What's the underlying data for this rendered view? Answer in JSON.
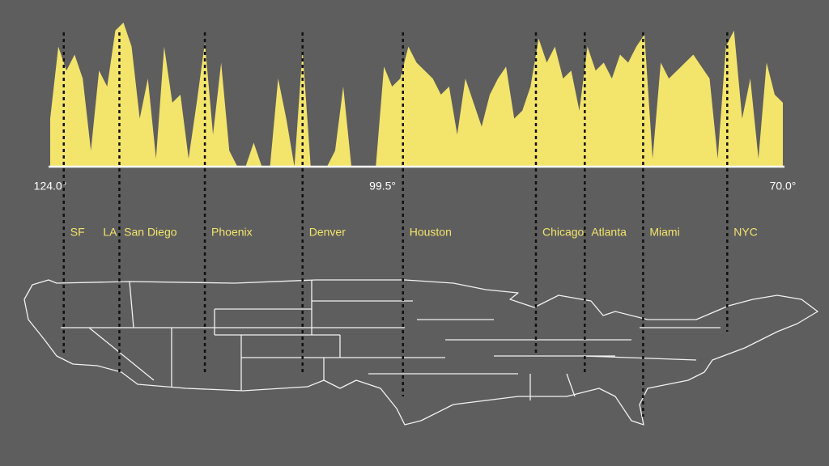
{
  "chart_data": {
    "type": "area",
    "color": "#f3e46c",
    "x": [
      124,
      123.4,
      122.8,
      122.2,
      121.6,
      121,
      120.4,
      119.8,
      119.2,
      118.6,
      118,
      117.4,
      116.8,
      116.2,
      115.6,
      115,
      114.4,
      113.8,
      113.2,
      112.6,
      112,
      111.4,
      110.8,
      110.2,
      109.6,
      109,
      108.4,
      107.8,
      107.2,
      106.6,
      106,
      105.4,
      104.8,
      104.2,
      103.6,
      103,
      102.4,
      101.8,
      101.2,
      100.6,
      100,
      99.4,
      98.8,
      98.2,
      97.6,
      97,
      96.4,
      95.8,
      95.2,
      94.6,
      94,
      93.4,
      92.8,
      92.2,
      91.6,
      91,
      90.4,
      89.8,
      89.2,
      88.6,
      88,
      87.4,
      86.8,
      86.2,
      85.6,
      85,
      84.4,
      83.8,
      83.2,
      82.6,
      82,
      81.4,
      80.8,
      80.2,
      79.6,
      79,
      78.4,
      77.8,
      77.2,
      76.6,
      76,
      75.4,
      74.8,
      74.2,
      73.6,
      73,
      72.4,
      71.8,
      71.2,
      70.6,
      70
    ],
    "values": [
      60,
      150,
      120,
      140,
      110,
      20,
      120,
      100,
      170,
      180,
      150,
      60,
      110,
      10,
      150,
      80,
      90,
      10,
      80,
      155,
      40,
      130,
      20,
      0,
      0,
      30,
      0,
      0,
      110,
      60,
      0,
      145,
      0,
      0,
      0,
      20,
      100,
      0,
      0,
      0,
      0,
      125,
      100,
      110,
      150,
      130,
      120,
      110,
      90,
      100,
      40,
      110,
      80,
      50,
      90,
      110,
      125,
      60,
      70,
      100,
      160,
      130,
      150,
      110,
      120,
      70,
      150,
      120,
      130,
      110,
      140,
      130,
      150,
      165,
      10,
      130,
      110,
      120,
      130,
      140,
      125,
      110,
      10,
      150,
      170,
      60,
      110,
      10,
      130,
      90,
      80
    ],
    "xlim": [
      124,
      70
    ],
    "ylim": [
      0,
      190
    ],
    "xticks": [
      {
        "value": 124,
        "label": "124.0°"
      },
      {
        "value": 99.5,
        "label": "99.5°"
      },
      {
        "value": 70,
        "label": "70.0°"
      }
    ],
    "cities": [
      {
        "name": "SF",
        "lon": 123.0
      },
      {
        "name": "LA",
        "lon": 118.9
      },
      {
        "name": "San Diego",
        "lon": 118.8
      },
      {
        "name": "Phoenix",
        "lon": 112.6
      },
      {
        "name": "Denver",
        "lon": 105.4
      },
      {
        "name": "Houston",
        "lon": 98.0
      },
      {
        "name": "Chicago",
        "lon": 88.2
      },
      {
        "name": "Atlanta",
        "lon": 84.6
      },
      {
        "name": "Miami",
        "lon": 80.3
      },
      {
        "name": "NYC",
        "lon": 74.1
      }
    ]
  }
}
